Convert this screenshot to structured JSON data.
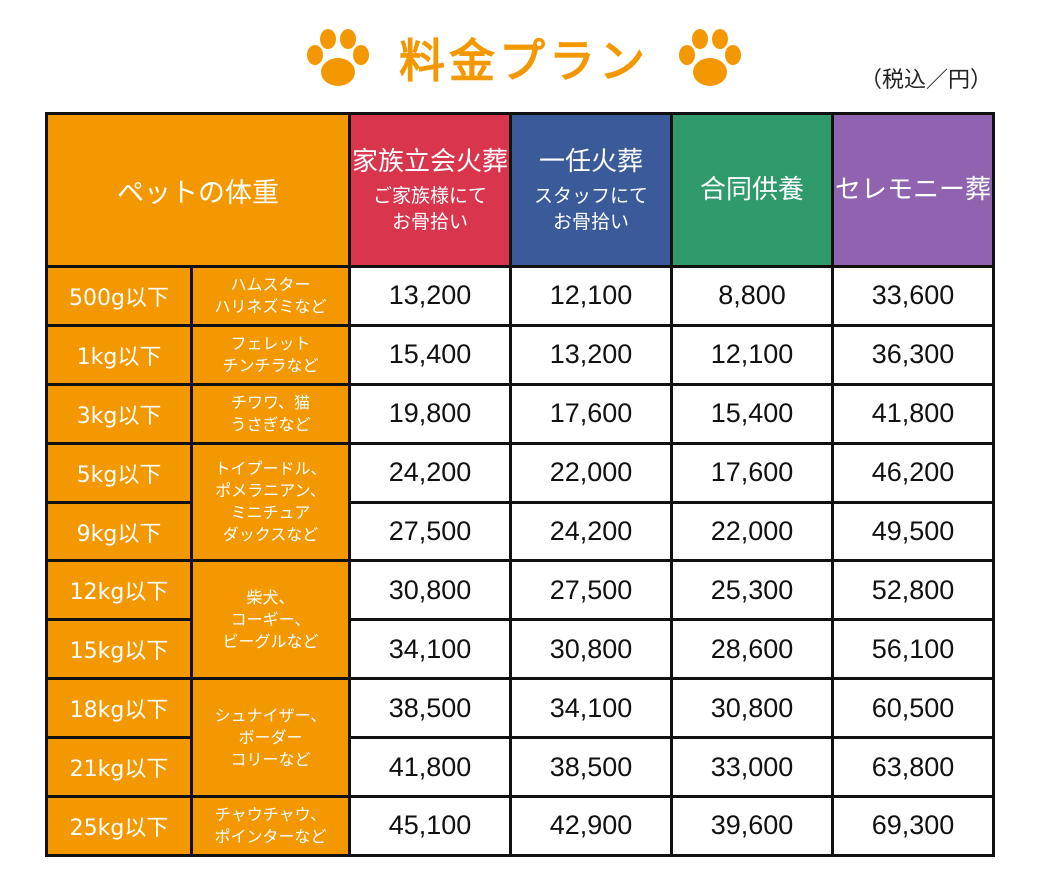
{
  "colors": {
    "orange": "#f39800",
    "kazoku": "#d9354c",
    "ichinin": "#3a5a9a",
    "godo": "#2f9a6a",
    "ceremony": "#8f63b0"
  },
  "header": {
    "title": "料金プラン",
    "tax_note": "（税込／円）",
    "icon": "paw-icon"
  },
  "table": {
    "weight_header": "ペットの体重",
    "plans": [
      {
        "name": "家族立会火葬",
        "sub": "ご家族様にて\nお骨拾い",
        "color": "#d9354c"
      },
      {
        "name": "一任火葬",
        "sub": "スタッフにて\nお骨拾い",
        "color": "#3a5a9a"
      },
      {
        "name": "合同供養",
        "sub": "",
        "color": "#2f9a6a"
      },
      {
        "name": "セレモニー葬",
        "sub": "",
        "color": "#8f63b0"
      }
    ],
    "rows": [
      {
        "weight": "500g以下",
        "pets": "ハムスター\nハリネズミなど",
        "pet_span": 1,
        "prices": [
          "13,200",
          "12,100",
          "8,800",
          "33,600"
        ]
      },
      {
        "weight": "1kg以下",
        "pets": "フェレット\nチンチラなど",
        "pet_span": 1,
        "prices": [
          "15,400",
          "13,200",
          "12,100",
          "36,300"
        ]
      },
      {
        "weight": "3kg以下",
        "pets": "チワワ、猫\nうさぎなど",
        "pet_span": 1,
        "prices": [
          "19,800",
          "17,600",
          "15,400",
          "41,800"
        ]
      },
      {
        "weight": "5kg以下",
        "pets": "トイプードル、\nポメラニアン、\nミニチュア\nダックスなど",
        "pet_span": 2,
        "prices": [
          "24,200",
          "22,000",
          "17,600",
          "46,200"
        ]
      },
      {
        "weight": "9kg以下",
        "pets": null,
        "pet_span": 0,
        "prices": [
          "27,500",
          "24,200",
          "22,000",
          "49,500"
        ]
      },
      {
        "weight": "12kg以下",
        "pets": "柴犬、\nコーギー、\nビーグルなど",
        "pet_span": 2,
        "prices": [
          "30,800",
          "27,500",
          "25,300",
          "52,800"
        ]
      },
      {
        "weight": "15kg以下",
        "pets": null,
        "pet_span": 0,
        "prices": [
          "34,100",
          "30,800",
          "28,600",
          "56,100"
        ]
      },
      {
        "weight": "18kg以下",
        "pets": "シュナイザー、\nボーダー\nコリーなど",
        "pet_span": 2,
        "prices": [
          "38,500",
          "34,100",
          "30,800",
          "60,500"
        ]
      },
      {
        "weight": "21kg以下",
        "pets": null,
        "pet_span": 0,
        "prices": [
          "41,800",
          "38,500",
          "33,000",
          "63,800"
        ]
      },
      {
        "weight": "25kg以下",
        "pets": "チャウチャウ、\nポインターなど",
        "pet_span": 1,
        "prices": [
          "45,100",
          "42,900",
          "39,600",
          "69,300"
        ]
      }
    ]
  }
}
